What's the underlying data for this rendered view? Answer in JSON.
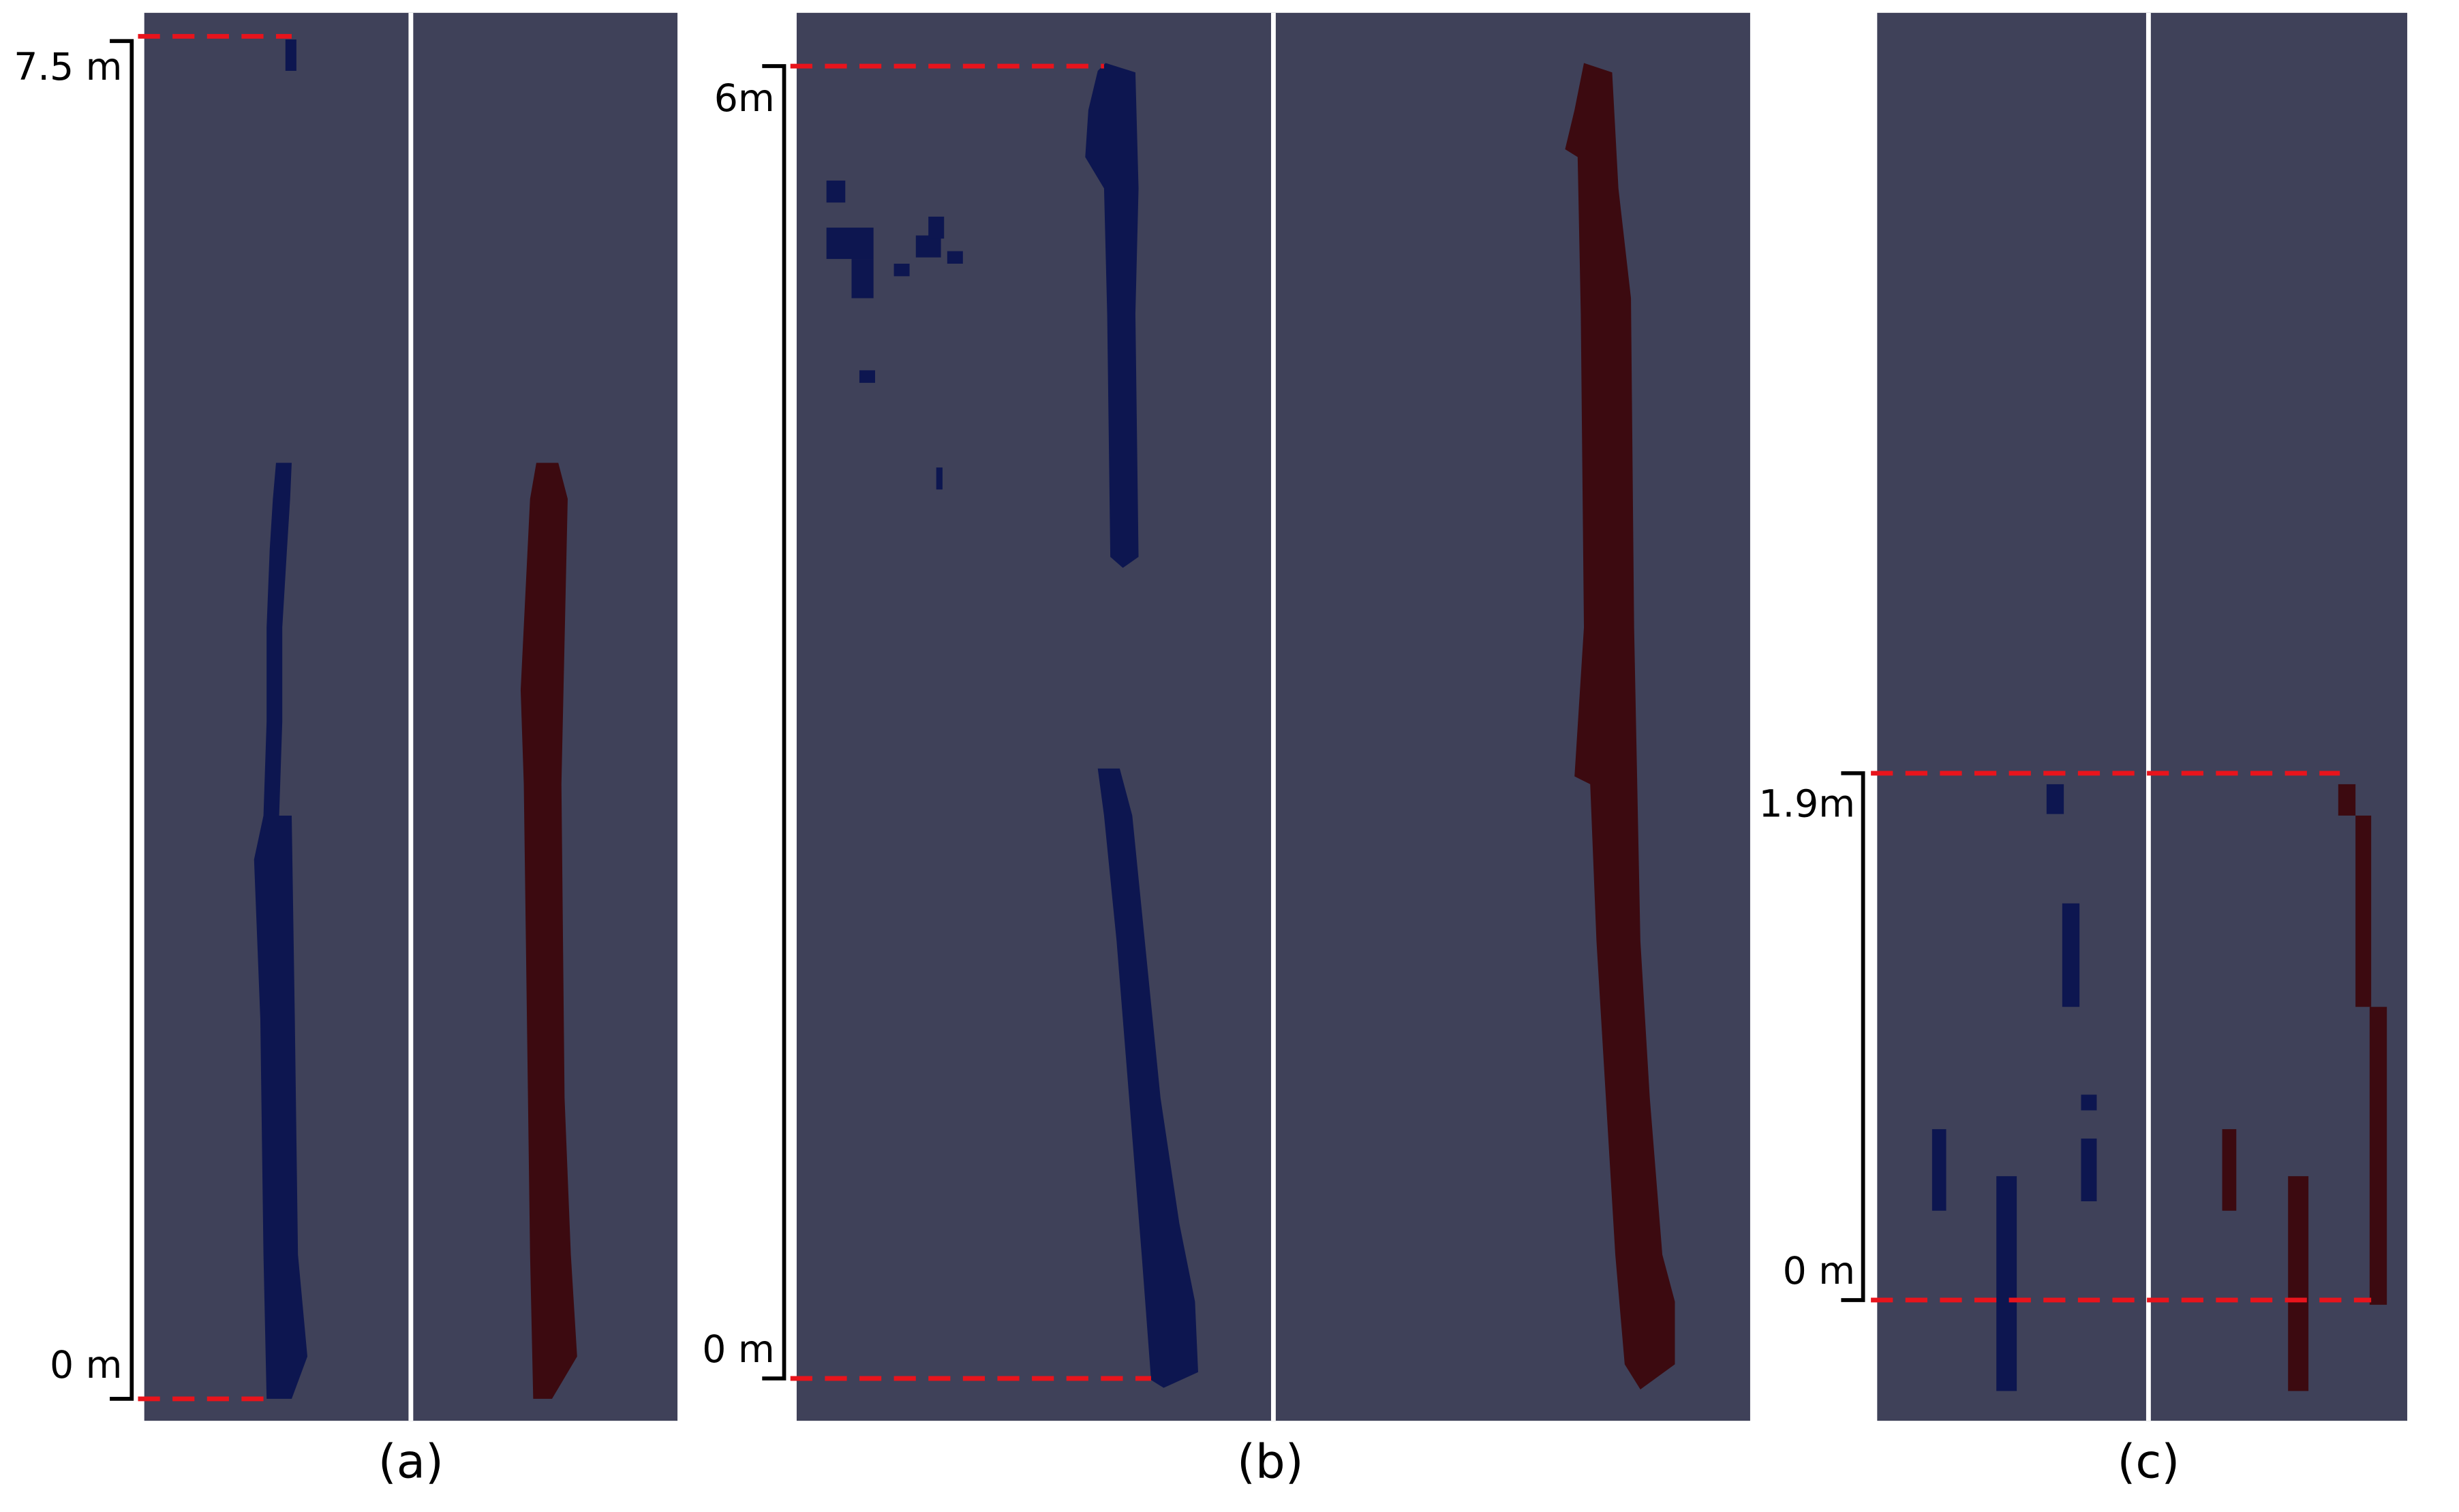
{
  "panels": [
    {
      "top_label": "7.5 m",
      "bottom_label": "0 m",
      "caption": "(a)"
    },
    {
      "top_label": "6m",
      "bottom_label": "0 m",
      "caption": "(b)"
    },
    {
      "top_label": "1.9m",
      "bottom_label": "0 m",
      "caption": "(c)"
    }
  ]
}
